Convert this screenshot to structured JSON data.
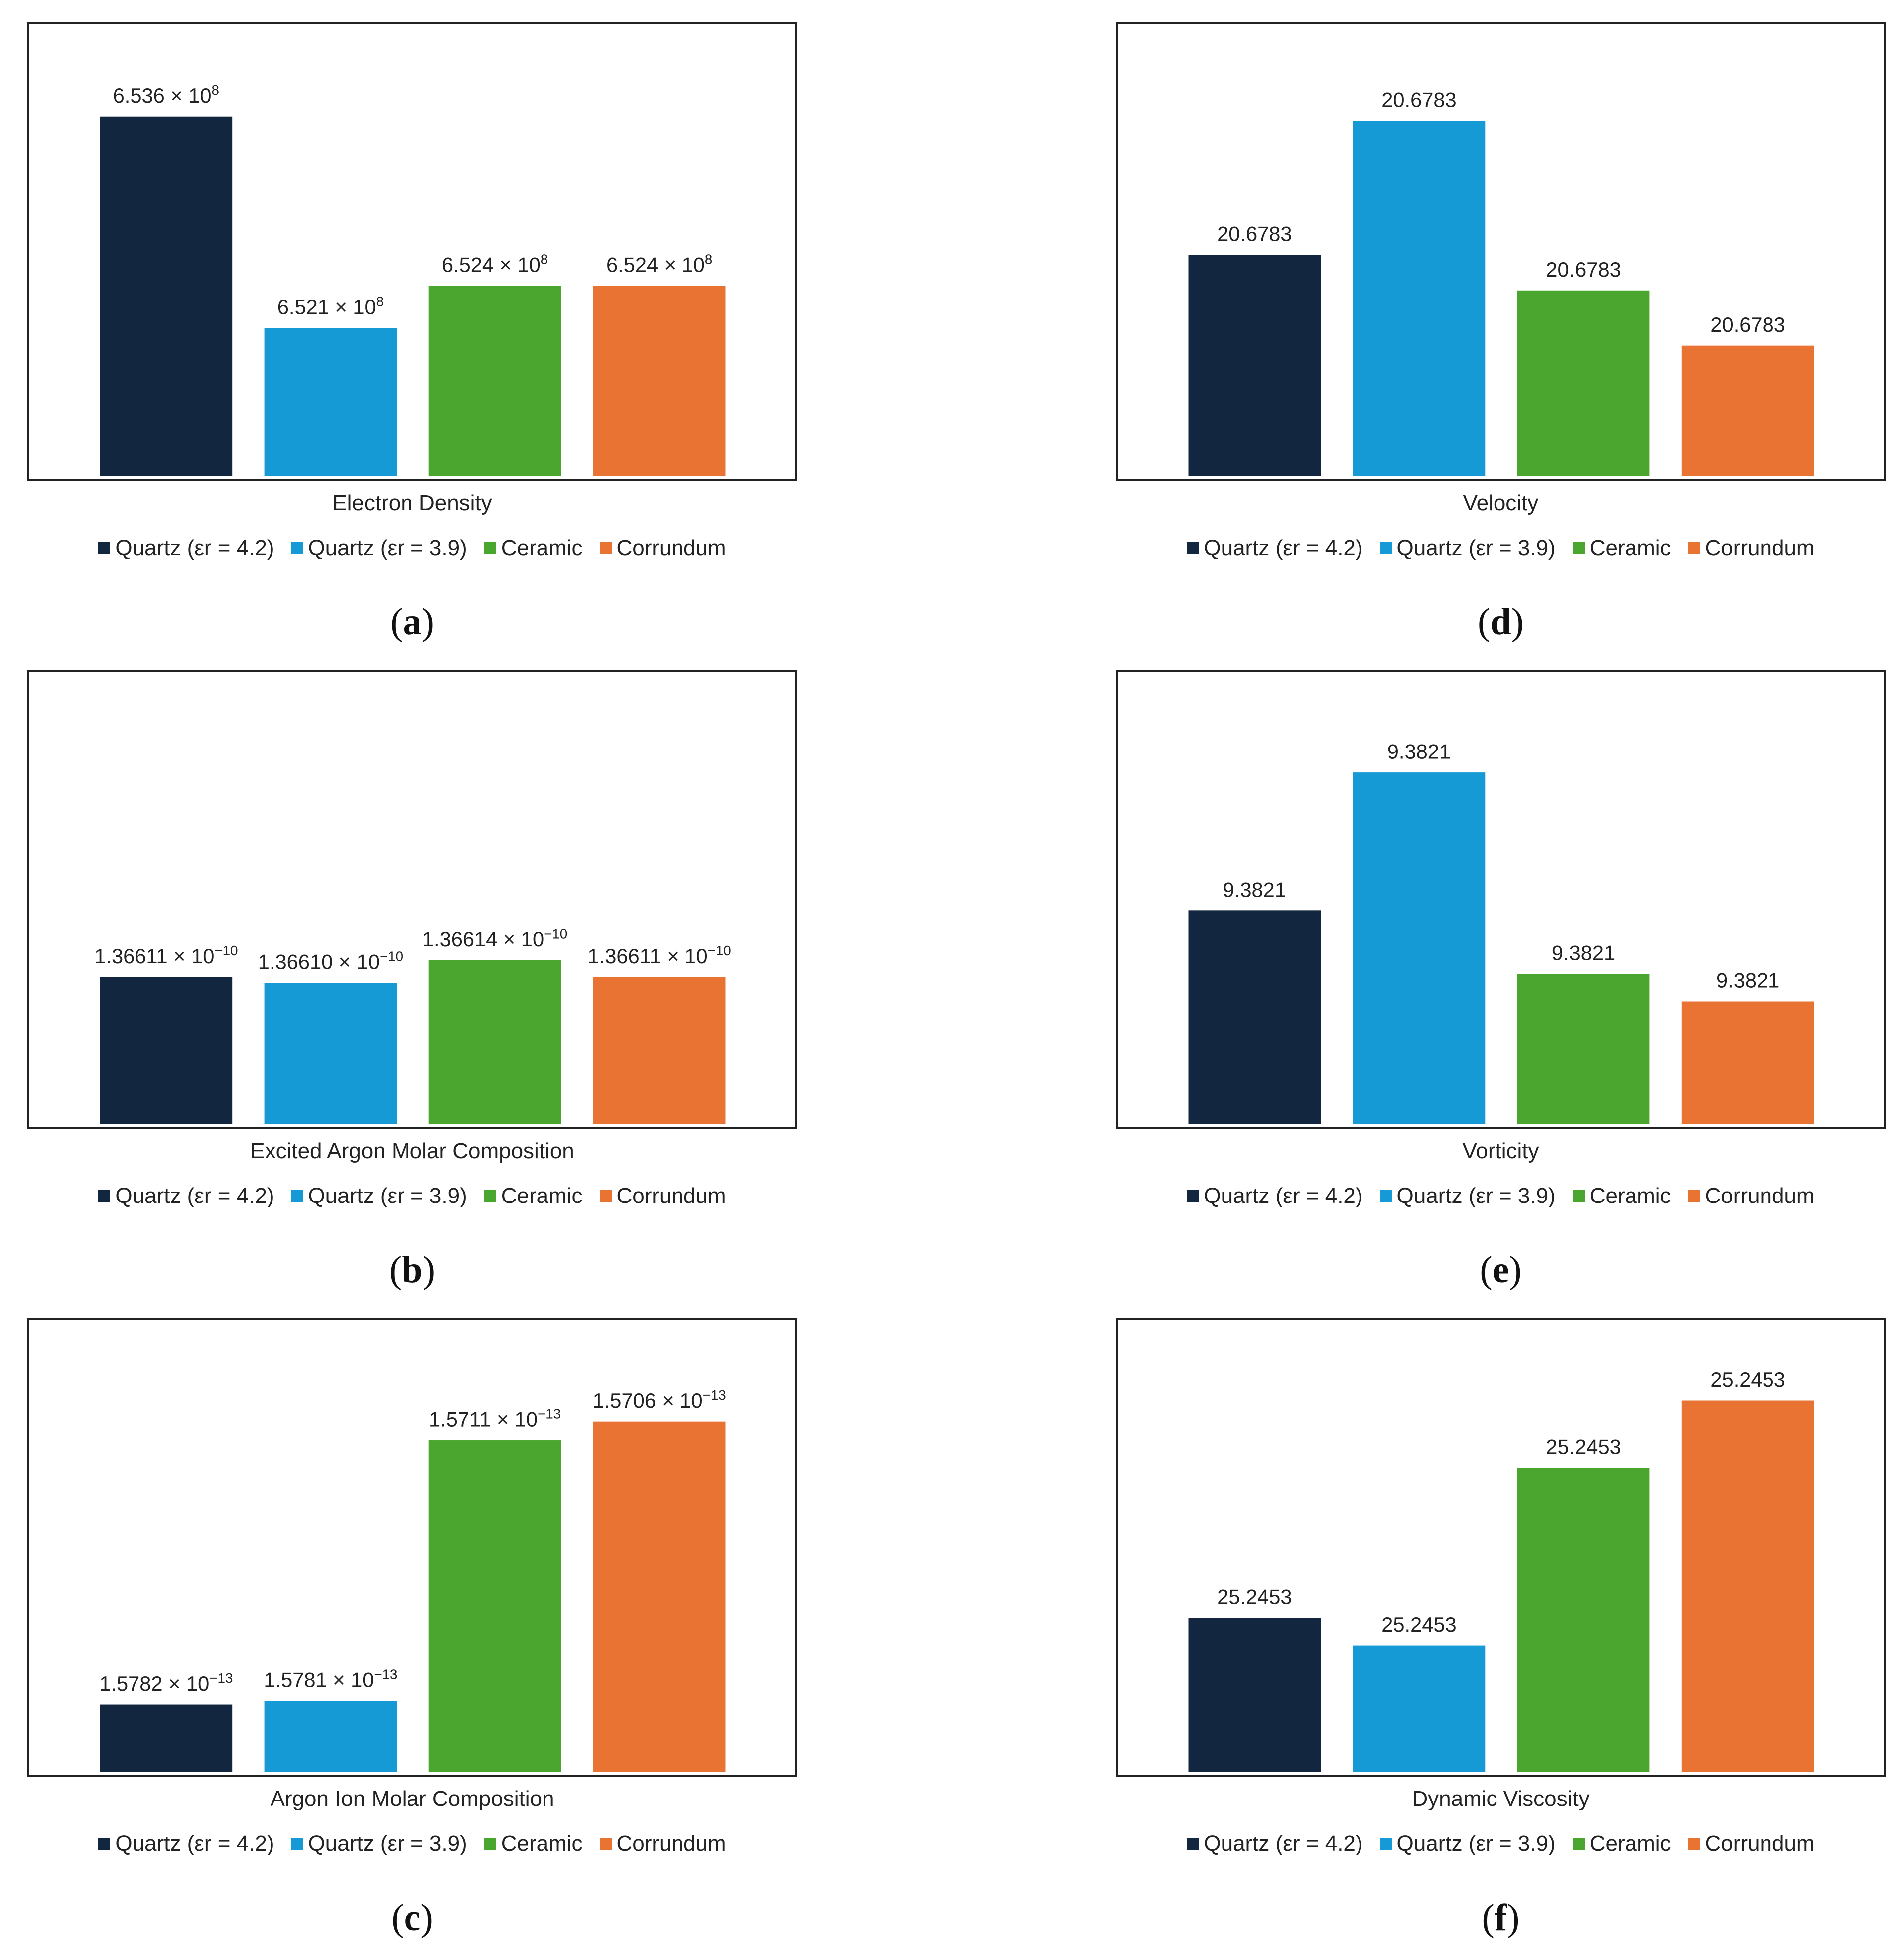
{
  "legend": [
    {
      "label": "Quartz (εr = 4.2)",
      "color": "#12263f"
    },
    {
      "label": "Quartz (εr = 3.9)",
      "color": "#169ad6"
    },
    {
      "label": "Ceramic",
      "color": "#4aa62f"
    },
    {
      "label": "Corrundum",
      "color": "#e87333"
    }
  ],
  "panels": [
    {
      "letter": "a"
    },
    {
      "letter": "b"
    },
    {
      "letter": "c"
    },
    {
      "letter": "d"
    },
    {
      "letter": "e"
    },
    {
      "letter": "f"
    }
  ],
  "chart_data": [
    {
      "type": "bar",
      "panel": "a",
      "xlabel": "Electron Density",
      "categories": [
        "Quartz (εr = 4.2)",
        "Quartz (εr = 3.9)",
        "Ceramic",
        "Corrundum"
      ],
      "values": [
        653600000.0,
        652100000.0,
        652400000.0,
        652400000.0
      ],
      "labels": [
        {
          "base": "6.536 × 10",
          "exp": "8"
        },
        {
          "base": "6.521 × 10",
          "exp": "8"
        },
        {
          "base": "6.524 × 10",
          "exp": "8"
        },
        {
          "base": "6.524 × 10",
          "exp": "8"
        }
      ],
      "ylim": [
        651050000.0,
        653850000.0
      ]
    },
    {
      "type": "bar",
      "panel": "b",
      "xlabel": "Excited Argon Molar Composition",
      "categories": [
        "Quartz (εr = 4.2)",
        "Quartz (εr = 3.9)",
        "Ceramic",
        "Corrundum"
      ],
      "values": [
        1.36611e-10,
        1.3661e-10,
        1.36614e-10,
        1.36611e-10
      ],
      "labels": [
        {
          "base": "1.36611 × 10",
          "exp": "−10"
        },
        {
          "base": "1.36610 × 10",
          "exp": "−10"
        },
        {
          "base": "1.36614 × 10",
          "exp": "−10"
        },
        {
          "base": "1.36611 × 10",
          "exp": "−10"
        }
      ],
      "ylim": [
        1.36585e-10,
        1.36655e-10
      ]
    },
    {
      "type": "bar",
      "panel": "c",
      "xlabel": "Argon Ion Molar Composition",
      "categories": [
        "Quartz (εr = 4.2)",
        "Quartz (εr = 3.9)",
        "Ceramic",
        "Corrundum"
      ],
      "values": [
        1.5782e-13,
        1.5781e-13,
        1.5711e-13,
        1.5706e-13
      ],
      "labels": [
        {
          "base": "1.5782 × 10",
          "exp": "−13"
        },
        {
          "base": "1.5781 × 10",
          "exp": "−13"
        },
        {
          "base": "1.5711 × 10",
          "exp": "−13"
        },
        {
          "base": "1.5706 × 10",
          "exp": "−13"
        }
      ],
      "ylim": [
        1.58e-13,
        1.5694e-13
      ]
    },
    {
      "type": "bar",
      "panel": "d",
      "xlabel": "Velocity",
      "categories": [
        "Quartz (εr = 4.2)",
        "Quartz (εr = 3.9)",
        "Ceramic",
        "Corrundum"
      ],
      "values": [
        20.6783,
        20.6783,
        20.6783,
        20.6783
      ],
      "labels": [
        {
          "base": "20.6783",
          "exp": ""
        },
        {
          "base": "20.6783",
          "exp": ""
        },
        {
          "base": "20.6783",
          "exp": ""
        },
        {
          "base": "20.6783",
          "exp": ""
        }
      ],
      "relative_heights": [
        0.56,
        0.9,
        0.47,
        0.33
      ]
    },
    {
      "type": "bar",
      "panel": "e",
      "xlabel": "Vorticity",
      "categories": [
        "Quartz (εr = 4.2)",
        "Quartz (εr = 3.9)",
        "Ceramic",
        "Corrundum"
      ],
      "values": [
        9.3821,
        9.3821,
        9.3821,
        9.3821
      ],
      "labels": [
        {
          "base": "9.3821",
          "exp": ""
        },
        {
          "base": "9.3821",
          "exp": ""
        },
        {
          "base": "9.3821",
          "exp": ""
        },
        {
          "base": "9.3821",
          "exp": ""
        }
      ],
      "relative_heights": [
        0.54,
        0.89,
        0.38,
        0.31
      ]
    },
    {
      "type": "bar",
      "panel": "f",
      "xlabel": "Dynamic Viscosity",
      "categories": [
        "Quartz (εr = 4.2)",
        "Quartz (εr = 3.9)",
        "Ceramic",
        "Corrundum"
      ],
      "values": [
        25.2453,
        25.2453,
        25.2453,
        25.2453
      ],
      "labels": [
        {
          "base": "25.2453",
          "exp": ""
        },
        {
          "base": "25.2453",
          "exp": ""
        },
        {
          "base": "25.2453",
          "exp": ""
        },
        {
          "base": "25.2453",
          "exp": ""
        }
      ],
      "relative_heights": [
        0.39,
        0.32,
        0.77,
        0.94
      ]
    }
  ]
}
